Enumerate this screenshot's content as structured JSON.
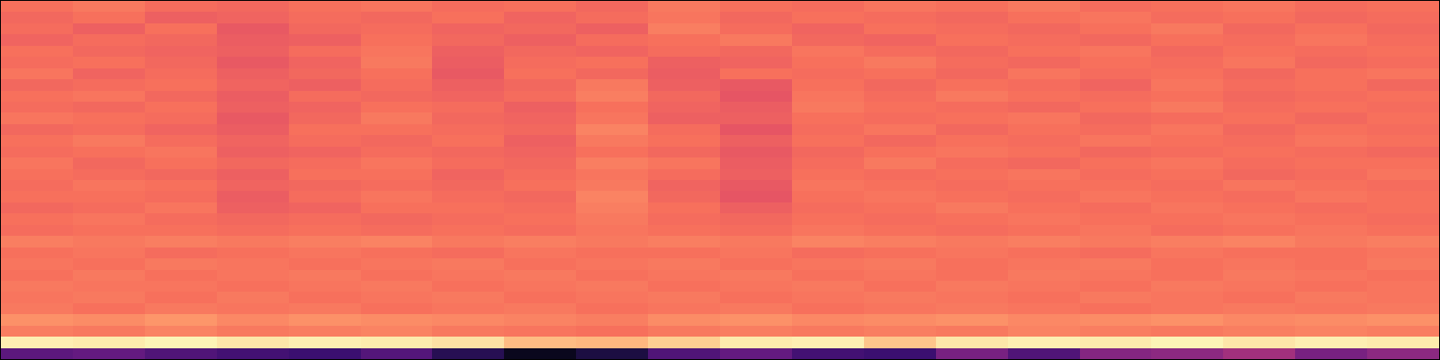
{
  "chart_data": {
    "type": "heatmap",
    "tick_labels": false,
    "zlim": [
      0,
      1
    ],
    "cells": [
      [
        0.7,
        0.72,
        0.69,
        0.68,
        0.7,
        0.71,
        0.69,
        0.7,
        0.68,
        0.72,
        0.7,
        0.69,
        0.71,
        0.7,
        0.72,
        0.69,
        0.7,
        0.71,
        0.69,
        0.7
      ],
      [
        0.68,
        0.7,
        0.66,
        0.67,
        0.69,
        0.68,
        0.7,
        0.67,
        0.69,
        0.71,
        0.68,
        0.7,
        0.69,
        0.68,
        0.7,
        0.71,
        0.69,
        0.7,
        0.68,
        0.69
      ],
      [
        0.69,
        0.66,
        0.7,
        0.64,
        0.68,
        0.69,
        0.67,
        0.68,
        0.66,
        0.73,
        0.69,
        0.67,
        0.7,
        0.69,
        0.68,
        0.7,
        0.72,
        0.68,
        0.7,
        0.68
      ],
      [
        0.67,
        0.69,
        0.68,
        0.65,
        0.66,
        0.7,
        0.68,
        0.66,
        0.69,
        0.7,
        0.72,
        0.68,
        0.67,
        0.7,
        0.69,
        0.68,
        0.7,
        0.69,
        0.71,
        0.69
      ],
      [
        0.7,
        0.68,
        0.67,
        0.66,
        0.69,
        0.71,
        0.66,
        0.68,
        0.67,
        0.69,
        0.68,
        0.71,
        0.69,
        0.68,
        0.7,
        0.71,
        0.68,
        0.7,
        0.69,
        0.7
      ],
      [
        0.69,
        0.7,
        0.68,
        0.64,
        0.67,
        0.72,
        0.65,
        0.69,
        0.7,
        0.66,
        0.67,
        0.7,
        0.72,
        0.69,
        0.68,
        0.7,
        0.69,
        0.71,
        0.68,
        0.69
      ],
      [
        0.71,
        0.67,
        0.69,
        0.66,
        0.68,
        0.7,
        0.64,
        0.7,
        0.68,
        0.65,
        0.7,
        0.69,
        0.7,
        0.68,
        0.71,
        0.69,
        0.7,
        0.68,
        0.7,
        0.71
      ],
      [
        0.68,
        0.69,
        0.7,
        0.67,
        0.66,
        0.69,
        0.66,
        0.68,
        0.72,
        0.66,
        0.64,
        0.7,
        0.68,
        0.7,
        0.69,
        0.67,
        0.71,
        0.69,
        0.7,
        0.68
      ],
      [
        0.7,
        0.71,
        0.68,
        0.65,
        0.69,
        0.68,
        0.67,
        0.69,
        0.73,
        0.68,
        0.63,
        0.71,
        0.69,
        0.72,
        0.7,
        0.69,
        0.7,
        0.68,
        0.69,
        0.7
      ],
      [
        0.69,
        0.68,
        0.7,
        0.66,
        0.67,
        0.7,
        0.69,
        0.66,
        0.7,
        0.67,
        0.65,
        0.72,
        0.7,
        0.69,
        0.68,
        0.7,
        0.72,
        0.69,
        0.7,
        0.69
      ],
      [
        0.71,
        0.7,
        0.69,
        0.64,
        0.68,
        0.72,
        0.68,
        0.67,
        0.71,
        0.66,
        0.66,
        0.7,
        0.69,
        0.7,
        0.71,
        0.68,
        0.69,
        0.7,
        0.68,
        0.7
      ],
      [
        0.68,
        0.69,
        0.67,
        0.65,
        0.7,
        0.7,
        0.69,
        0.68,
        0.74,
        0.69,
        0.63,
        0.69,
        0.71,
        0.68,
        0.7,
        0.69,
        0.71,
        0.68,
        0.7,
        0.69
      ],
      [
        0.7,
        0.72,
        0.69,
        0.67,
        0.69,
        0.68,
        0.7,
        0.66,
        0.72,
        0.7,
        0.66,
        0.7,
        0.68,
        0.7,
        0.69,
        0.71,
        0.7,
        0.69,
        0.71,
        0.7
      ],
      [
        0.69,
        0.7,
        0.71,
        0.66,
        0.67,
        0.69,
        0.68,
        0.67,
        0.7,
        0.68,
        0.64,
        0.68,
        0.7,
        0.71,
        0.7,
        0.68,
        0.69,
        0.7,
        0.69,
        0.68
      ],
      [
        0.71,
        0.68,
        0.7,
        0.68,
        0.69,
        0.71,
        0.69,
        0.68,
        0.73,
        0.71,
        0.65,
        0.69,
        0.72,
        0.69,
        0.68,
        0.7,
        0.71,
        0.69,
        0.7,
        0.7
      ],
      [
        0.7,
        0.69,
        0.68,
        0.66,
        0.7,
        0.7,
        0.67,
        0.69,
        0.71,
        0.69,
        0.66,
        0.7,
        0.69,
        0.7,
        0.71,
        0.69,
        0.7,
        0.68,
        0.69,
        0.71
      ],
      [
        0.69,
        0.71,
        0.7,
        0.67,
        0.68,
        0.69,
        0.68,
        0.7,
        0.72,
        0.67,
        0.64,
        0.71,
        0.7,
        0.69,
        0.7,
        0.7,
        0.69,
        0.71,
        0.7,
        0.69
      ],
      [
        0.7,
        0.7,
        0.69,
        0.65,
        0.69,
        0.71,
        0.69,
        0.68,
        0.74,
        0.68,
        0.63,
        0.7,
        0.71,
        0.7,
        0.69,
        0.71,
        0.7,
        0.69,
        0.71,
        0.7
      ],
      [
        0.68,
        0.69,
        0.71,
        0.66,
        0.67,
        0.7,
        0.7,
        0.69,
        0.73,
        0.7,
        0.66,
        0.69,
        0.7,
        0.72,
        0.7,
        0.69,
        0.71,
        0.7,
        0.69,
        0.7
      ],
      [
        0.7,
        0.71,
        0.69,
        0.68,
        0.69,
        0.68,
        0.69,
        0.7,
        0.72,
        0.69,
        0.68,
        0.7,
        0.69,
        0.7,
        0.71,
        0.7,
        0.7,
        0.71,
        0.7,
        0.69
      ],
      [
        0.69,
        0.7,
        0.7,
        0.69,
        0.7,
        0.69,
        0.7,
        0.69,
        0.71,
        0.7,
        0.69,
        0.71,
        0.7,
        0.69,
        0.7,
        0.71,
        0.69,
        0.7,
        0.71,
        0.7
      ],
      [
        0.73,
        0.72,
        0.73,
        0.72,
        0.73,
        0.74,
        0.72,
        0.73,
        0.72,
        0.73,
        0.72,
        0.74,
        0.73,
        0.72,
        0.73,
        0.72,
        0.73,
        0.74,
        0.72,
        0.73
      ],
      [
        0.7,
        0.71,
        0.69,
        0.7,
        0.71,
        0.7,
        0.69,
        0.71,
        0.7,
        0.7,
        0.71,
        0.69,
        0.7,
        0.71,
        0.7,
        0.69,
        0.71,
        0.7,
        0.7,
        0.71
      ],
      [
        0.71,
        0.7,
        0.72,
        0.71,
        0.7,
        0.71,
        0.72,
        0.7,
        0.71,
        0.72,
        0.7,
        0.71,
        0.72,
        0.7,
        0.71,
        0.72,
        0.7,
        0.71,
        0.7,
        0.72
      ],
      [
        0.7,
        0.72,
        0.7,
        0.71,
        0.72,
        0.7,
        0.71,
        0.72,
        0.7,
        0.71,
        0.72,
        0.7,
        0.71,
        0.7,
        0.72,
        0.71,
        0.7,
        0.72,
        0.71,
        0.7
      ],
      [
        0.72,
        0.71,
        0.71,
        0.7,
        0.71,
        0.72,
        0.7,
        0.71,
        0.72,
        0.7,
        0.71,
        0.72,
        0.7,
        0.72,
        0.71,
        0.7,
        0.72,
        0.71,
        0.7,
        0.71
      ],
      [
        0.71,
        0.72,
        0.7,
        0.72,
        0.7,
        0.71,
        0.72,
        0.7,
        0.71,
        0.72,
        0.7,
        0.71,
        0.72,
        0.71,
        0.7,
        0.72,
        0.71,
        0.7,
        0.72,
        0.71
      ],
      [
        0.72,
        0.7,
        0.72,
        0.71,
        0.72,
        0.7,
        0.71,
        0.72,
        0.7,
        0.71,
        0.72,
        0.7,
        0.71,
        0.72,
        0.71,
        0.7,
        0.71,
        0.72,
        0.71,
        0.72
      ],
      [
        0.77,
        0.76,
        0.78,
        0.75,
        0.77,
        0.76,
        0.75,
        0.74,
        0.73,
        0.76,
        0.77,
        0.75,
        0.76,
        0.77,
        0.75,
        0.76,
        0.77,
        0.75,
        0.76,
        0.77
      ],
      [
        0.73,
        0.72,
        0.74,
        0.72,
        0.73,
        0.74,
        0.72,
        0.71,
        0.7,
        0.72,
        0.73,
        0.72,
        0.73,
        0.72,
        0.74,
        0.73,
        0.72,
        0.73,
        0.74,
        0.73
      ],
      [
        0.97,
        0.96,
        0.98,
        0.95,
        0.97,
        0.96,
        0.94,
        0.86,
        0.85,
        0.9,
        0.96,
        0.97,
        0.88,
        0.95,
        0.97,
        0.96,
        0.98,
        0.95,
        0.97,
        0.96
      ],
      [
        0.28,
        0.3,
        0.25,
        0.22,
        0.2,
        0.26,
        0.15,
        0.05,
        0.12,
        0.25,
        0.3,
        0.22,
        0.2,
        0.35,
        0.25,
        0.38,
        0.4,
        0.45,
        0.35,
        0.4
      ]
    ]
  }
}
